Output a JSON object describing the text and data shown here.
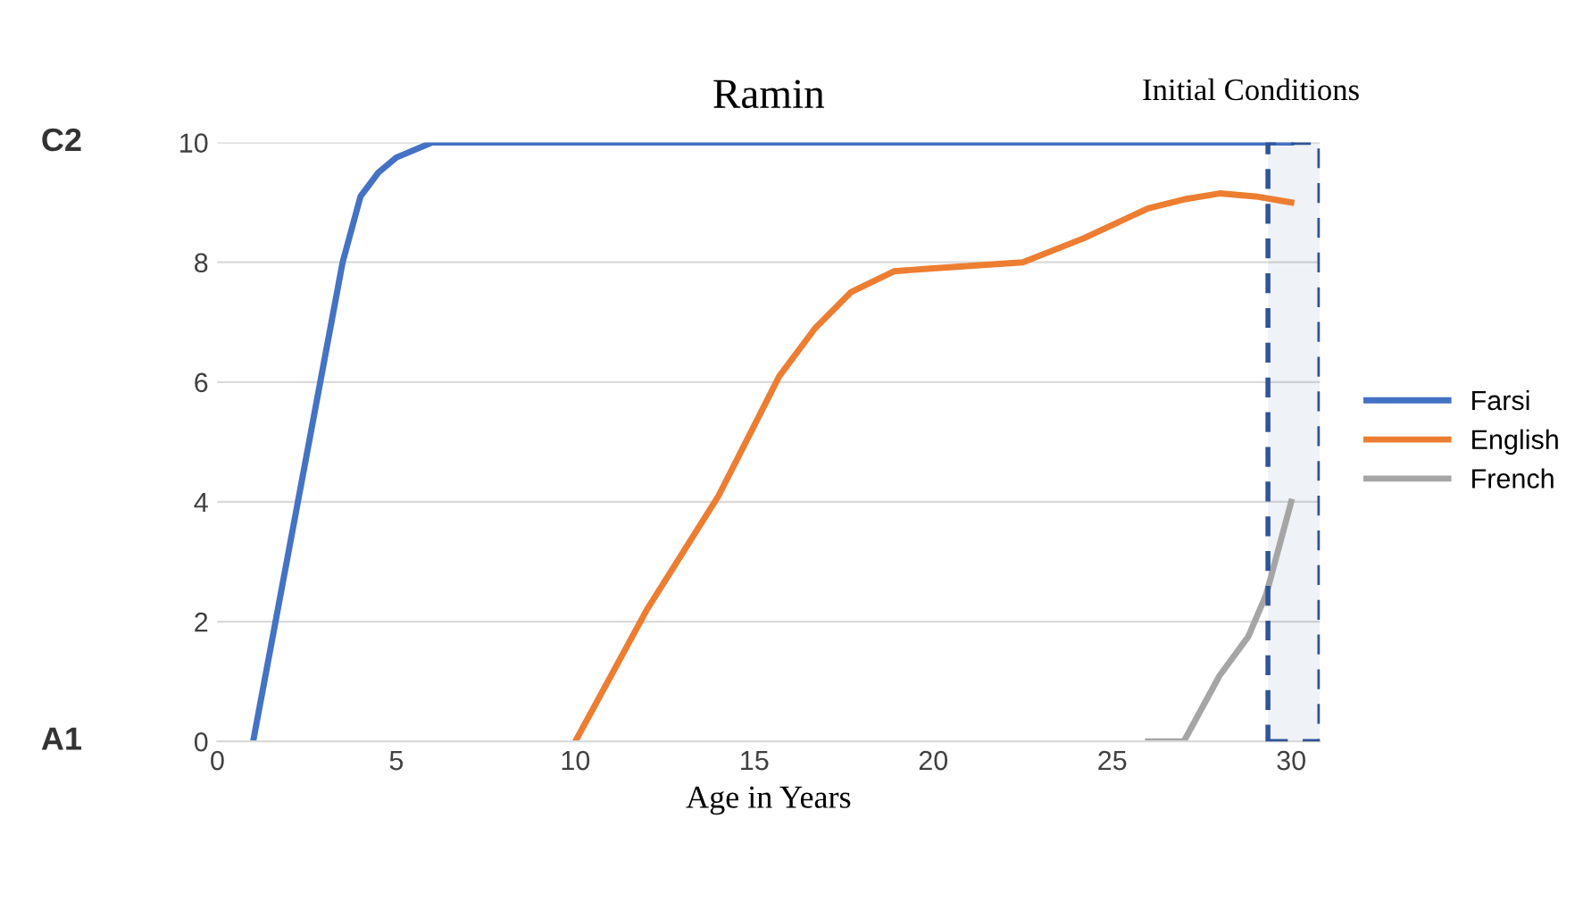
{
  "chart_data": {
    "type": "line",
    "title": "Ramin",
    "xlabel": "Age in Years",
    "xlim": [
      0,
      30.8
    ],
    "xticks": [
      0,
      5,
      10,
      15,
      20,
      25,
      30
    ],
    "ylim": [
      0,
      10
    ],
    "yticks": [
      0,
      2,
      4,
      6,
      8,
      10
    ],
    "grid": "y",
    "legend": "right",
    "line_style": "solid",
    "marker": "none",
    "annotations": [
      "C2",
      "A1"
    ],
    "bands": [
      {
        "axis": "x",
        "from": 29.35,
        "to": 30.8,
        "label": "Initial Conditions",
        "color": "#2f5597"
      }
    ],
    "series": [
      {
        "name": "Farsi",
        "color": "#4472c4",
        "x": [
          1,
          2,
          3,
          3.5,
          4,
          4.5,
          5,
          6,
          30
        ],
        "values": [
          0,
          3.2,
          6.4,
          8,
          9.1,
          9.5,
          9.75,
          10,
          10
        ]
      },
      {
        "name": "English",
        "color": "#ed7d31",
        "x": [
          10,
          12,
          14,
          15.7,
          16.7,
          17.7,
          18.9,
          20,
          22.5,
          24.2,
          26,
          27,
          28,
          29,
          30
        ],
        "values": [
          0,
          2.2,
          4.1,
          6.1,
          6.9,
          7.5,
          7.85,
          7.9,
          8,
          8.4,
          8.9,
          9.05,
          9.15,
          9.1,
          9.0
        ]
      },
      {
        "name": "French",
        "color": "#a5a5a5",
        "x": [
          26,
          27,
          28,
          28.8,
          29.3,
          30
        ],
        "values": [
          0,
          0,
          1.1,
          1.75,
          2.45,
          4
        ]
      }
    ]
  }
}
